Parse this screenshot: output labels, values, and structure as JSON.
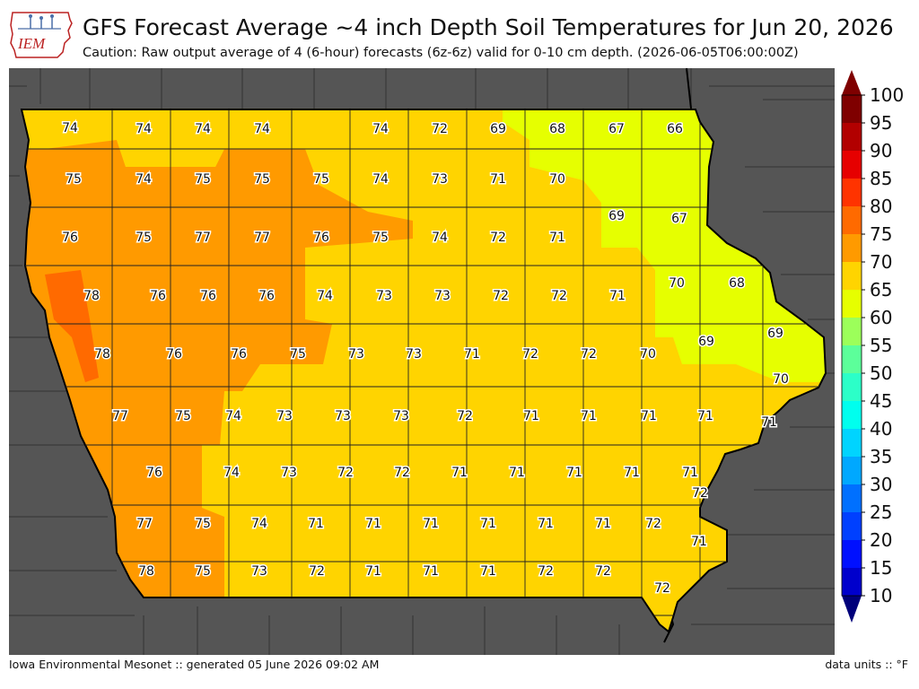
{
  "header": {
    "logo_text": "IEM",
    "title": "GFS Forecast Average ~4 inch Depth Soil Temperatures for Jun 20, 2026",
    "subtitle": "Caution: Raw output average of 4 (6-hour) forecasts (6z-6z) valid for 0-10 cm depth. (2026-06-05T06:00:00Z)"
  },
  "footer": {
    "left": "Iowa Environmental Mesonet :: generated 05 June 2026 09:02 AM",
    "right": "data units :: °F"
  },
  "colors": {
    "background_outside": "#555555",
    "county_line": "#222222",
    "color_65_70": "#e6ff00",
    "color_70_75": "#ffd400",
    "color_75_80": "#ff9a00",
    "color_80_85": "#ff6a00"
  },
  "colorbar": {
    "ticks": [
      "100",
      "95",
      "90",
      "85",
      "80",
      "75",
      "70",
      "65",
      "60",
      "55",
      "50",
      "45",
      "40",
      "35",
      "30",
      "25",
      "20",
      "15",
      "10"
    ],
    "bands": [
      "#7f0000",
      "#b20000",
      "#e60000",
      "#ff3300",
      "#ff6a00",
      "#ff9a00",
      "#ffd400",
      "#e6ff00",
      "#9cff5a",
      "#5cff9a",
      "#2cffc8",
      "#00ffee",
      "#00d4ff",
      "#00a8ff",
      "#0070ff",
      "#0040ff",
      "#0010ff",
      "#0000cc",
      "#00009a"
    ],
    "over_color": "#7f0000",
    "under_color": "#00007a"
  },
  "map_values": [
    {
      "county": "r1c1",
      "value": 74
    },
    {
      "county": "r1c2",
      "value": 74
    },
    {
      "county": "r1c3",
      "value": 74
    },
    {
      "county": "r1c4",
      "value": 74
    },
    {
      "county": "r1c5",
      "value": 74
    },
    {
      "county": "r1c6",
      "value": 72
    },
    {
      "county": "r1c7",
      "value": 69
    },
    {
      "county": "r1c8",
      "value": 68
    },
    {
      "county": "r1c9",
      "value": 67
    },
    {
      "county": "r1c10",
      "value": 66
    },
    {
      "county": "r2c1",
      "value": 75
    },
    {
      "county": "r2c2",
      "value": 74
    },
    {
      "county": "r2c3",
      "value": 75
    },
    {
      "county": "r2c4",
      "value": 75
    },
    {
      "county": "r2c5",
      "value": 75
    },
    {
      "county": "r2c6",
      "value": 74
    },
    {
      "county": "r2c7",
      "value": 73
    },
    {
      "county": "r2c8",
      "value": 71
    },
    {
      "county": "r2c9",
      "value": 70
    },
    {
      "county": "r3c1",
      "value": 76
    },
    {
      "county": "r3c2",
      "value": 75
    },
    {
      "county": "r3c3",
      "value": 77
    },
    {
      "county": "r3c4",
      "value": 77
    },
    {
      "county": "r3c5",
      "value": 76
    },
    {
      "county": "r3c6",
      "value": 75
    },
    {
      "county": "r3c7",
      "value": 74
    },
    {
      "county": "r3c8",
      "value": 72
    },
    {
      "county": "r3c9",
      "value": 71
    },
    {
      "county": "r3c10",
      "value": 69
    },
    {
      "county": "r3c11",
      "value": 67
    },
    {
      "county": "r4c1",
      "value": 78
    },
    {
      "county": "r4c2",
      "value": 76
    },
    {
      "county": "r4c3",
      "value": 76
    },
    {
      "county": "r4c4",
      "value": 76
    },
    {
      "county": "r4c5",
      "value": 74
    },
    {
      "county": "r4c6",
      "value": 73
    },
    {
      "county": "r4c7",
      "value": 73
    },
    {
      "county": "r4c8",
      "value": 72
    },
    {
      "county": "r4c9",
      "value": 72
    },
    {
      "county": "r4c10",
      "value": 71
    },
    {
      "county": "r4c11",
      "value": 70
    },
    {
      "county": "r4c12",
      "value": 68
    },
    {
      "county": "r5c1",
      "value": 78
    },
    {
      "county": "r5c2",
      "value": 76
    },
    {
      "county": "r5c3",
      "value": 76
    },
    {
      "county": "r5c4",
      "value": 75
    },
    {
      "county": "r5c5",
      "value": 73
    },
    {
      "county": "r5c6",
      "value": 73
    },
    {
      "county": "r5c7",
      "value": 71
    },
    {
      "county": "r5c8",
      "value": 72
    },
    {
      "county": "r5c9",
      "value": 72
    },
    {
      "county": "r5c10",
      "value": 70
    },
    {
      "county": "r5c11",
      "value": 69
    },
    {
      "county": "r5c12",
      "value": 69
    },
    {
      "county": "r6c1",
      "value": 77
    },
    {
      "county": "r6c2",
      "value": 75
    },
    {
      "county": "r6c3",
      "value": 74
    },
    {
      "county": "r6c4",
      "value": 73
    },
    {
      "county": "r6c5",
      "value": 73
    },
    {
      "county": "r6c6",
      "value": 73
    },
    {
      "county": "r6c7",
      "value": 72
    },
    {
      "county": "r6c8",
      "value": 71
    },
    {
      "county": "r6c9",
      "value": 71
    },
    {
      "county": "r6c10",
      "value": 71
    },
    {
      "county": "r6c11",
      "value": 71
    },
    {
      "county": "r6c12",
      "value": 70
    },
    {
      "county": "r6c13",
      "value": 71
    },
    {
      "county": "r7c1",
      "value": 76
    },
    {
      "county": "r7c2",
      "value": 74
    },
    {
      "county": "r7c3",
      "value": 73
    },
    {
      "county": "r7c4",
      "value": 72
    },
    {
      "county": "r7c5",
      "value": 72
    },
    {
      "county": "r7c6",
      "value": 71
    },
    {
      "county": "r7c7",
      "value": 71
    },
    {
      "county": "r7c8",
      "value": 71
    },
    {
      "county": "r7c9",
      "value": 71
    },
    {
      "county": "r7c10",
      "value": 71
    },
    {
      "county": "r7c11",
      "value": 72
    },
    {
      "county": "r8c1",
      "value": 77
    },
    {
      "county": "r8c2",
      "value": 75
    },
    {
      "county": "r8c3",
      "value": 74
    },
    {
      "county": "r8c4",
      "value": 71
    },
    {
      "county": "r8c5",
      "value": 71
    },
    {
      "county": "r8c6",
      "value": 71
    },
    {
      "county": "r8c7",
      "value": 71
    },
    {
      "county": "r8c8",
      "value": 71
    },
    {
      "county": "r8c9",
      "value": 71
    },
    {
      "county": "r8c10",
      "value": 72
    },
    {
      "county": "r8c11",
      "value": 71
    },
    {
      "county": "r9c1",
      "value": 78
    },
    {
      "county": "r9c2",
      "value": 75
    },
    {
      "county": "r9c3",
      "value": 73
    },
    {
      "county": "r9c4",
      "value": 72
    },
    {
      "county": "r9c5",
      "value": 71
    },
    {
      "county": "r9c6",
      "value": 71
    },
    {
      "county": "r9c7",
      "value": 71
    },
    {
      "county": "r9c8",
      "value": 72
    },
    {
      "county": "r9c9",
      "value": 72
    },
    {
      "county": "r9c10",
      "value": 72
    }
  ]
}
